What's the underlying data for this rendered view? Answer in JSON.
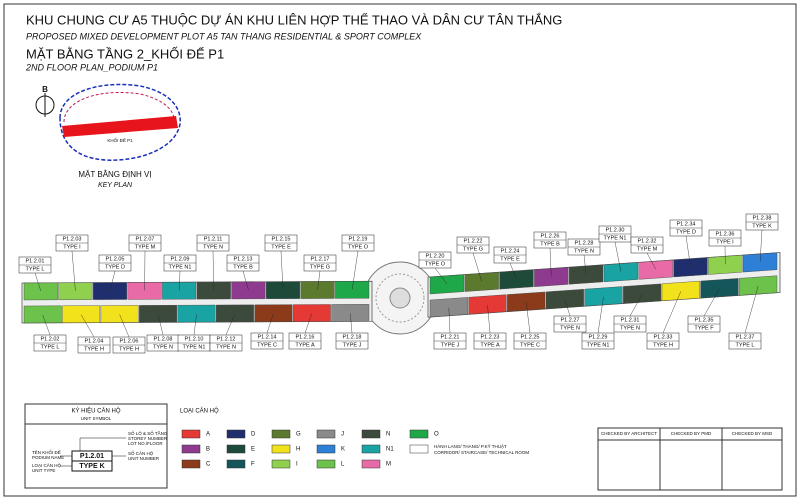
{
  "header": {
    "title": "KHU CHUNG CƯ A5 THUỘC DỰ ÁN KHU LIÊN HỢP THỂ THAO VÀ DÂN CƯ TÂN THẮNG",
    "subtitle": "PROPOSED MIXED DEVELOPMENT PLOT A5 TAN THANG RESIDENTIAL & SPORT COMPLEX",
    "plan_title": "MẶT BẰNG TẦNG 2_KHỐI ĐẾ P1",
    "plan_subtitle": "2ND FLOOR PLAN_PODIUM P1"
  },
  "key_plan": {
    "north": "B",
    "block": "KHỐI ĐẾ P1",
    "title": "MẶT BẰNG ĐỊNH VỊ",
    "subtitle": "KEY PLAN"
  },
  "units": [
    {
      "id": "P1.2.01",
      "type": "TYPE L"
    },
    {
      "id": "P1.2.02",
      "type": "TYPE L"
    },
    {
      "id": "P1.2.03",
      "type": "TYPE I"
    },
    {
      "id": "P1.2.04",
      "type": "TYPE H"
    },
    {
      "id": "P1.2.05",
      "type": "TYPE D"
    },
    {
      "id": "P1.2.06",
      "type": "TYPE H"
    },
    {
      "id": "P1.2.07",
      "type": "TYPE M"
    },
    {
      "id": "P1.2.08",
      "type": "TYPE N"
    },
    {
      "id": "P1.2.09",
      "type": "TYPE N1"
    },
    {
      "id": "P1.2.10",
      "type": "TYPE N1"
    },
    {
      "id": "P1.2.11",
      "type": "TYPE N"
    },
    {
      "id": "P1.2.12",
      "type": "TYPE N"
    },
    {
      "id": "P1.2.13",
      "type": "TYPE B"
    },
    {
      "id": "P1.2.14",
      "type": "TYPE C"
    },
    {
      "id": "P1.2.15",
      "type": "TYPE E"
    },
    {
      "id": "P1.2.16",
      "type": "TYPE A"
    },
    {
      "id": "P1.2.17",
      "type": "TYPE G"
    },
    {
      "id": "P1.2.18",
      "type": "TYPE J"
    },
    {
      "id": "P1.2.19",
      "type": "TYPE O"
    },
    {
      "id": "P1.2.20",
      "type": "TYPE O"
    },
    {
      "id": "P1.2.21",
      "type": "TYPE J"
    },
    {
      "id": "P1.2.22",
      "type": "TYPE G"
    },
    {
      "id": "P1.2.23",
      "type": "TYPE A"
    },
    {
      "id": "P1.2.24",
      "type": "TYPE E"
    },
    {
      "id": "P1.2.25",
      "type": "TYPE C"
    },
    {
      "id": "P1.2.26",
      "type": "TYPE B"
    },
    {
      "id": "P1.2.27",
      "type": "TYPE N"
    },
    {
      "id": "P1.2.28",
      "type": "TYPE N"
    },
    {
      "id": "P1.2.29",
      "type": "TYPE N1"
    },
    {
      "id": "P1.2.30",
      "type": "TYPE N1"
    },
    {
      "id": "P1.2.31",
      "type": "TYPE N"
    },
    {
      "id": "P1.2.32",
      "type": "TYPE M"
    },
    {
      "id": "P1.2.33",
      "type": "TYPE H"
    },
    {
      "id": "P1.2.34",
      "type": "TYPE D"
    },
    {
      "id": "P1.2.35",
      "type": "TYPE F"
    },
    {
      "id": "P1.2.36",
      "type": "TYPE I"
    },
    {
      "id": "P1.2.37",
      "type": "TYPE L"
    },
    {
      "id": "P1.2.38",
      "type": "TYPE K"
    }
  ],
  "unit_legend": {
    "title": "LOẠI CĂN HỘ",
    "items": [
      {
        "code": "A",
        "color": "#e53935"
      },
      {
        "code": "B",
        "color": "#8e3a8e"
      },
      {
        "code": "C",
        "color": "#8b3a1a"
      },
      {
        "code": "D",
        "color": "#1f2f6e"
      },
      {
        "code": "E",
        "color": "#1e4a3a"
      },
      {
        "code": "F",
        "color": "#14565a"
      },
      {
        "code": "G",
        "color": "#5c7a2e"
      },
      {
        "code": "H",
        "color": "#f2e21c"
      },
      {
        "code": "I",
        "color": "#8fd14f"
      },
      {
        "code": "J",
        "color": "#8a8a8a"
      },
      {
        "code": "K",
        "color": "#2e7fd6"
      },
      {
        "code": "L",
        "color": "#6cc24a"
      },
      {
        "code": "N",
        "color": "#3c4a3c"
      },
      {
        "code": "N1",
        "color": "#1aa3a3"
      },
      {
        "code": "M",
        "color": "#e86aa6"
      },
      {
        "code": "O",
        "color": "#1fa84a"
      }
    ],
    "corridor": [
      "HÀNH LANG/ THANG/ P.KỸ THUẬT",
      "CORRIDOR/ STAIRCASE/ TECHNICAL ROOM"
    ]
  },
  "symbol_legend": {
    "title": "KÝ HIỆU CĂN HỘ",
    "subtitle": "UNIT SYMBOL",
    "lot_vn": "SỐ LÔ & SỐ TẦNG",
    "lot_en": "STOREY NUMBER",
    "lot_en2": "LOT NO./FLOOR",
    "podium_vn": "TÊN KHỐI ĐẾ",
    "podium_en": "PODIUM NAME",
    "type_vn": "LOẠI CĂN HỘ",
    "type_en": "UNIT TYPE",
    "number_vn": "SỐ CĂN HỘ",
    "number_en": "UNIT NUMBER",
    "sample_id": "P1.2.01",
    "sample_type": "TYPE K"
  },
  "title_block": {
    "checks": [
      "CHECKED BY ARCHITECT",
      "CHECKED BY PMD",
      "CHECKED BY MSD"
    ]
  }
}
